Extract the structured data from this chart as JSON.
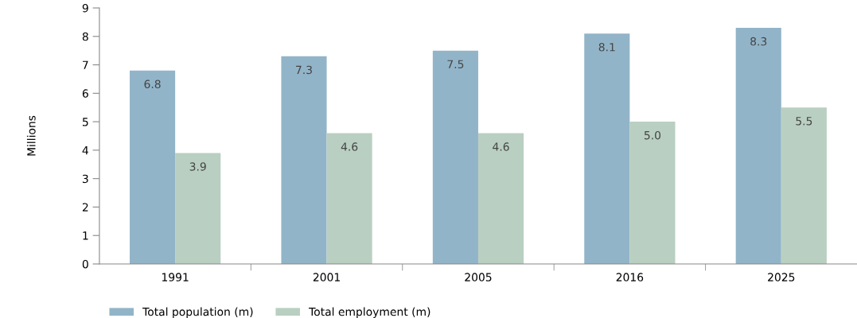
{
  "chart_data": {
    "type": "bar",
    "ylabel": "Millions",
    "categories": [
      "1991",
      "2001",
      "2005",
      "2016",
      "2025"
    ],
    "series": [
      {
        "name": "Total population (m)",
        "color": "#92b4c8",
        "values": [
          6.8,
          7.3,
          7.5,
          8.1,
          8.3
        ],
        "value_labels": [
          "6.8",
          "7.3",
          "7.5",
          "8.1",
          "8.3"
        ]
      },
      {
        "name": "Total employment (m)",
        "color": "#b9cfc1",
        "values": [
          3.9,
          4.6,
          4.6,
          5.0,
          5.5
        ],
        "value_labels": [
          "3.9",
          "4.6",
          "4.6",
          "5.0",
          "5.5"
        ]
      }
    ],
    "ylim": [
      0,
      9
    ],
    "yticks": [
      0,
      1,
      2,
      3,
      4,
      5,
      6,
      7,
      8,
      9
    ],
    "grid": false,
    "legend": "bottom left"
  }
}
